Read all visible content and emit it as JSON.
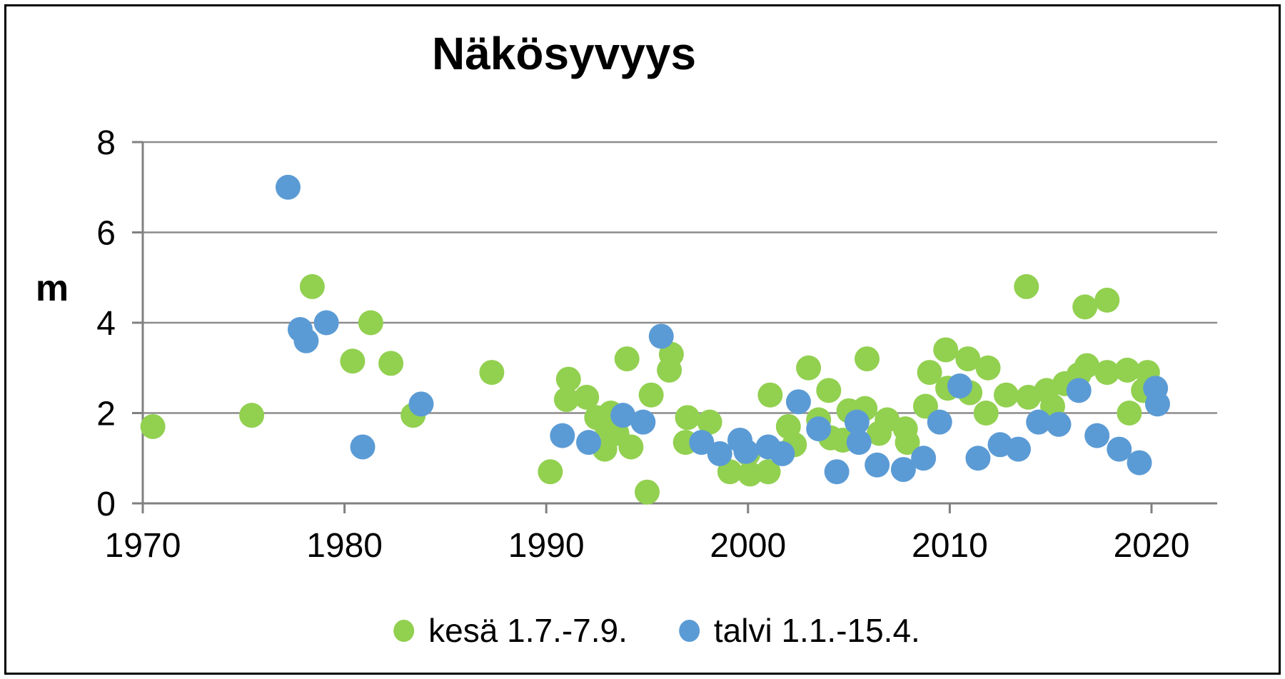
{
  "chart_data": {
    "type": "scatter",
    "title": "Näkösyvyys",
    "ylabel": "m",
    "xlim": [
      1970,
      2023.3
    ],
    "ylim": [
      0,
      8
    ],
    "xticks": [
      1970,
      1980,
      1990,
      2000,
      2010,
      2020
    ],
    "yticks": [
      0,
      2,
      4,
      6,
      8
    ],
    "grid": "horizontal",
    "legend_position": "bottom-center",
    "series": [
      {
        "name": "kesä 1.7.-7.9.",
        "color": "#92D050",
        "points": [
          [
            1970.5,
            1.7
          ],
          [
            1975.4,
            1.95
          ],
          [
            1978.4,
            4.8
          ],
          [
            1980.4,
            3.15
          ],
          [
            1981.3,
            4.0
          ],
          [
            1982.3,
            3.1
          ],
          [
            1983.4,
            1.95
          ],
          [
            1987.3,
            2.9
          ],
          [
            1990.2,
            0.7
          ],
          [
            1991.0,
            2.3
          ],
          [
            1991.1,
            2.75
          ],
          [
            1992.0,
            2.35
          ],
          [
            1992.5,
            1.9
          ],
          [
            1992.9,
            1.2
          ],
          [
            1993.0,
            1.7
          ],
          [
            1993.2,
            2.0
          ],
          [
            1993.5,
            1.55
          ],
          [
            1994.0,
            3.2
          ],
          [
            1994.2,
            1.25
          ],
          [
            1995.0,
            0.25
          ],
          [
            1995.2,
            2.4
          ],
          [
            1996.1,
            2.95
          ],
          [
            1996.2,
            3.3
          ],
          [
            1996.9,
            1.35
          ],
          [
            1997.0,
            1.9
          ],
          [
            1998.1,
            1.8
          ],
          [
            1999.1,
            0.7
          ],
          [
            2000.0,
            1.1
          ],
          [
            2000.1,
            0.65
          ],
          [
            2001.0,
            0.7
          ],
          [
            2001.1,
            2.4
          ],
          [
            2002.0,
            1.7
          ],
          [
            2002.3,
            1.3
          ],
          [
            2003.0,
            3.0
          ],
          [
            2003.5,
            1.85
          ],
          [
            2004.0,
            2.5
          ],
          [
            2004.1,
            1.45
          ],
          [
            2004.7,
            1.4
          ],
          [
            2005.0,
            2.05
          ],
          [
            2005.8,
            2.1
          ],
          [
            2005.9,
            3.2
          ],
          [
            2006.5,
            1.55
          ],
          [
            2006.9,
            1.85
          ],
          [
            2007.8,
            1.65
          ],
          [
            2007.9,
            1.35
          ],
          [
            2008.8,
            2.15
          ],
          [
            2009.0,
            2.9
          ],
          [
            2009.8,
            3.4
          ],
          [
            2009.9,
            2.55
          ],
          [
            2010.9,
            3.2
          ],
          [
            2011.0,
            2.45
          ],
          [
            2011.8,
            2.0
          ],
          [
            2011.9,
            3.0
          ],
          [
            2012.8,
            2.4
          ],
          [
            2013.8,
            4.8
          ],
          [
            2013.9,
            2.35
          ],
          [
            2014.8,
            2.5
          ],
          [
            2015.1,
            2.15
          ],
          [
            2015.7,
            2.65
          ],
          [
            2016.4,
            2.85
          ],
          [
            2016.7,
            4.35
          ],
          [
            2016.8,
            3.05
          ],
          [
            2017.8,
            4.5
          ],
          [
            2017.8,
            2.9
          ],
          [
            2018.8,
            2.95
          ],
          [
            2018.9,
            2.0
          ],
          [
            2019.6,
            2.5
          ],
          [
            2019.8,
            2.9
          ]
        ]
      },
      {
        "name": "talvi 1.1.-15.4.",
        "color": "#5B9BD5",
        "points": [
          [
            1977.2,
            7.0
          ],
          [
            1977.8,
            3.85
          ],
          [
            1978.1,
            3.6
          ],
          [
            1979.1,
            4.0
          ],
          [
            1980.9,
            1.25
          ],
          [
            1983.8,
            2.2
          ],
          [
            1990.8,
            1.5
          ],
          [
            1992.1,
            1.35
          ],
          [
            1993.8,
            1.95
          ],
          [
            1994.8,
            1.8
          ],
          [
            1995.7,
            3.7
          ],
          [
            1997.7,
            1.35
          ],
          [
            1998.6,
            1.1
          ],
          [
            1999.6,
            1.4
          ],
          [
            1999.9,
            1.15
          ],
          [
            2001.0,
            1.25
          ],
          [
            2001.7,
            1.1
          ],
          [
            2002.5,
            2.25
          ],
          [
            2003.5,
            1.65
          ],
          [
            2004.4,
            0.7
          ],
          [
            2005.4,
            1.8
          ],
          [
            2005.5,
            1.35
          ],
          [
            2006.4,
            0.85
          ],
          [
            2007.7,
            0.75
          ],
          [
            2008.7,
            1.0
          ],
          [
            2009.5,
            1.8
          ],
          [
            2010.5,
            2.6
          ],
          [
            2011.4,
            1.0
          ],
          [
            2012.5,
            1.3
          ],
          [
            2013.4,
            1.2
          ],
          [
            2014.4,
            1.8
          ],
          [
            2015.4,
            1.75
          ],
          [
            2016.4,
            2.5
          ],
          [
            2017.3,
            1.5
          ],
          [
            2018.4,
            1.2
          ],
          [
            2019.4,
            0.9
          ],
          [
            2020.2,
            2.55
          ],
          [
            2020.3,
            2.2
          ]
        ]
      }
    ]
  },
  "style": {
    "background": "#FFFFFF",
    "border_color": "#000000",
    "grid_color": "#8C8C8C",
    "axis_color": "#808080",
    "text_color": "#000000"
  }
}
